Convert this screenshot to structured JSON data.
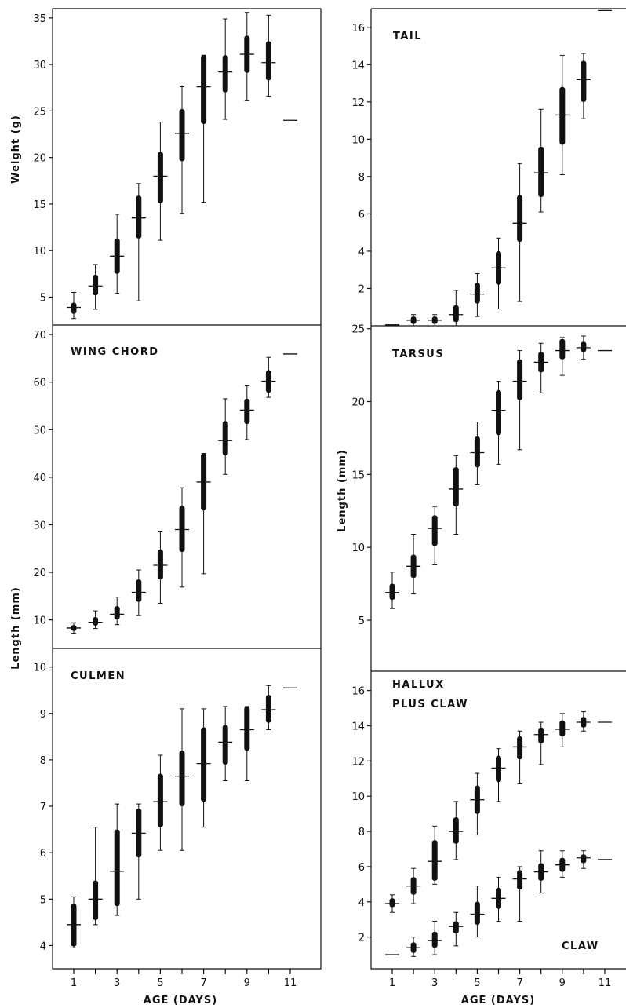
{
  "chart_data": [
    {
      "type": "boxplot",
      "id": "weight",
      "title": "",
      "ylabel": "Weight (g)",
      "yticks": [
        5,
        10,
        15,
        20,
        25,
        30,
        35
      ],
      "ylim": [
        2,
        36
      ],
      "boxes": [
        {
          "x": 1,
          "min": 2.7,
          "q1": 3.2,
          "median": 3.9,
          "q3": 4.4,
          "max": 5.5
        },
        {
          "x": 2,
          "min": 3.7,
          "q1": 5.2,
          "median": 6.2,
          "q3": 7.4,
          "max": 8.5
        },
        {
          "x": 3,
          "min": 5.4,
          "q1": 7.5,
          "median": 9.4,
          "q3": 11.3,
          "max": 13.9
        },
        {
          "x": 4,
          "min": 4.6,
          "q1": 11.3,
          "median": 13.5,
          "q3": 15.9,
          "max": 17.2
        },
        {
          "x": 5,
          "min": 11.1,
          "q1": 15.1,
          "median": 18.0,
          "q3": 20.6,
          "max": 23.8
        },
        {
          "x": 6,
          "min": 14.0,
          "q1": 19.6,
          "median": 22.6,
          "q3": 25.2,
          "max": 27.6
        },
        {
          "x": 7,
          "min": 15.2,
          "q1": 23.6,
          "median": 27.6,
          "q3": 31.0,
          "max": 31.0
        },
        {
          "x": 8,
          "min": 24.1,
          "q1": 27.0,
          "median": 29.2,
          "q3": 31.0,
          "max": 34.9
        },
        {
          "x": 9,
          "min": 26.1,
          "q1": 29.1,
          "median": 31.1,
          "q3": 33.1,
          "max": 35.6
        },
        {
          "x": 10,
          "min": 26.6,
          "q1": 28.3,
          "median": 30.2,
          "q3": 32.5,
          "max": 35.3
        },
        {
          "x": 11,
          "median": 24.0
        }
      ]
    },
    {
      "type": "boxplot",
      "id": "tail",
      "title": "TAIL",
      "yticks": [
        2,
        4,
        6,
        8,
        10,
        12,
        14,
        16
      ],
      "ylim": [
        0,
        17
      ],
      "boxes": [
        {
          "x": 1,
          "median": 0.05
        },
        {
          "x": 2,
          "min": 0.0,
          "q1": 0.1,
          "median": 0.3,
          "q3": 0.5,
          "max": 0.6
        },
        {
          "x": 3,
          "min": 0.0,
          "q1": 0.1,
          "median": 0.3,
          "q3": 0.5,
          "max": 0.6
        },
        {
          "x": 4,
          "min": 0.0,
          "q1": 0.2,
          "median": 0.6,
          "q3": 1.1,
          "max": 1.9
        },
        {
          "x": 5,
          "min": 0.5,
          "q1": 1.2,
          "median": 1.7,
          "q3": 2.3,
          "max": 2.8
        },
        {
          "x": 6,
          "min": 0.9,
          "q1": 2.2,
          "median": 3.1,
          "q3": 4.0,
          "max": 4.7
        },
        {
          "x": 7,
          "min": 1.3,
          "q1": 4.5,
          "median": 5.5,
          "q3": 7.0,
          "max": 8.7
        },
        {
          "x": 8,
          "min": 6.1,
          "q1": 6.9,
          "median": 8.2,
          "q3": 9.6,
          "max": 11.6
        },
        {
          "x": 9,
          "min": 8.1,
          "q1": 9.7,
          "median": 11.3,
          "q3": 12.8,
          "max": 14.5
        },
        {
          "x": 10,
          "min": 11.1,
          "q1": 12.0,
          "median": 13.2,
          "q3": 14.2,
          "max": 14.6
        },
        {
          "x": 11,
          "median": 16.9
        }
      ]
    },
    {
      "type": "boxplot",
      "id": "wing",
      "title": "WING CHORD",
      "yticks": [
        10,
        20,
        30,
        40,
        50,
        60,
        70
      ],
      "ylim": [
        4,
        72
      ],
      "boxes": [
        {
          "x": 1,
          "min": 7.2,
          "q1": 7.7,
          "median": 8.3,
          "q3": 8.9,
          "max": 9.4
        },
        {
          "x": 2,
          "min": 8.2,
          "q1": 8.8,
          "median": 9.5,
          "q3": 10.6,
          "max": 11.9
        },
        {
          "x": 3,
          "min": 9.0,
          "q1": 10.1,
          "median": 11.2,
          "q3": 12.9,
          "max": 14.8
        },
        {
          "x": 4,
          "min": 10.9,
          "q1": 13.8,
          "median": 15.8,
          "q3": 18.5,
          "max": 20.5
        },
        {
          "x": 5,
          "min": 13.5,
          "q1": 18.5,
          "median": 21.5,
          "q3": 24.8,
          "max": 28.5
        },
        {
          "x": 6,
          "min": 16.9,
          "q1": 24.3,
          "median": 29.0,
          "q3": 34.0,
          "max": 37.8
        },
        {
          "x": 7,
          "min": 19.7,
          "q1": 33.0,
          "median": 39.0,
          "q3": 45.0,
          "max": 45.0
        },
        {
          "x": 8,
          "min": 40.6,
          "q1": 44.6,
          "median": 47.7,
          "q3": 51.8,
          "max": 56.5
        },
        {
          "x": 9,
          "min": 47.9,
          "q1": 51.2,
          "median": 54.1,
          "q3": 56.5,
          "max": 59.2
        },
        {
          "x": 10,
          "min": 56.8,
          "q1": 57.8,
          "median": 60.2,
          "q3": 62.5,
          "max": 65.2
        },
        {
          "x": 11,
          "median": 65.9
        }
      ]
    },
    {
      "type": "boxplot",
      "id": "tarsus",
      "title": "TARSUS",
      "ylabel": "Length (mm)",
      "yticks": [
        5,
        10,
        15,
        20,
        25
      ],
      "ylim": [
        1.5,
        25.2
      ],
      "boxes": [
        {
          "x": 1,
          "min": 5.8,
          "q1": 6.4,
          "median": 6.9,
          "q3": 7.5,
          "max": 8.3
        },
        {
          "x": 2,
          "min": 6.8,
          "q1": 7.9,
          "median": 8.7,
          "q3": 9.5,
          "max": 10.9
        },
        {
          "x": 3,
          "min": 8.8,
          "q1": 10.1,
          "median": 11.3,
          "q3": 12.2,
          "max": 12.8
        },
        {
          "x": 4,
          "min": 10.9,
          "q1": 12.8,
          "median": 14.0,
          "q3": 15.5,
          "max": 16.3
        },
        {
          "x": 5,
          "min": 14.3,
          "q1": 15.5,
          "median": 16.5,
          "q3": 17.6,
          "max": 18.6
        },
        {
          "x": 6,
          "min": 15.7,
          "q1": 17.7,
          "median": 19.4,
          "q3": 20.8,
          "max": 21.4
        },
        {
          "x": 7,
          "min": 16.7,
          "q1": 20.1,
          "median": 21.4,
          "q3": 22.9,
          "max": 23.5
        },
        {
          "x": 8,
          "min": 20.6,
          "q1": 22.0,
          "median": 22.7,
          "q3": 23.4,
          "max": 24.0
        },
        {
          "x": 9,
          "min": 21.8,
          "q1": 22.9,
          "median": 23.5,
          "q3": 24.3,
          "max": 24.4
        },
        {
          "x": 10,
          "min": 22.9,
          "q1": 23.4,
          "median": 23.7,
          "q3": 24.1,
          "max": 24.5
        },
        {
          "x": 11,
          "median": 23.5
        }
      ]
    },
    {
      "type": "boxplot",
      "id": "culmen",
      "title": "CULMEN",
      "yticks": [
        4,
        5,
        6,
        7,
        8,
        9,
        10
      ],
      "ylim": [
        3.5,
        10.4
      ],
      "boxes": [
        {
          "x": 1,
          "min": 3.95,
          "q1": 3.98,
          "median": 4.45,
          "q3": 4.9,
          "max": 5.05
        },
        {
          "x": 2,
          "min": 4.45,
          "q1": 4.55,
          "median": 5.0,
          "q3": 5.4,
          "max": 6.55
        },
        {
          "x": 3,
          "min": 4.65,
          "q1": 4.85,
          "median": 5.6,
          "q3": 6.5,
          "max": 7.05
        },
        {
          "x": 4,
          "min": 5.0,
          "q1": 5.9,
          "median": 6.42,
          "q3": 6.95,
          "max": 7.05
        },
        {
          "x": 5,
          "min": 6.05,
          "q1": 6.55,
          "median": 7.1,
          "q3": 7.7,
          "max": 8.1
        },
        {
          "x": 6,
          "min": 6.05,
          "q1": 7.0,
          "median": 7.65,
          "q3": 8.2,
          "max": 9.1
        },
        {
          "x": 7,
          "min": 6.55,
          "q1": 7.1,
          "median": 7.92,
          "q3": 8.7,
          "max": 9.1
        },
        {
          "x": 8,
          "min": 7.55,
          "q1": 7.9,
          "median": 8.38,
          "q3": 8.75,
          "max": 9.15
        },
        {
          "x": 9,
          "min": 7.55,
          "q1": 8.2,
          "median": 8.65,
          "q3": 9.15,
          "max": 9.15
        },
        {
          "x": 10,
          "min": 8.65,
          "q1": 8.8,
          "median": 9.08,
          "q3": 9.4,
          "max": 9.6
        },
        {
          "x": 11,
          "median": 9.55
        }
      ]
    },
    {
      "type": "boxplot",
      "id": "hallux",
      "title": "HALLUX",
      "title_line2": "PLUS CLAW",
      "series_label": "CLAW",
      "yticks": [
        2,
        4,
        6,
        8,
        10,
        12,
        14,
        16
      ],
      "ylim": [
        0.2,
        17.1
      ],
      "boxes": [
        {
          "x": 1,
          "min": 3.4,
          "q1": 3.7,
          "median": 3.9,
          "q3": 4.2,
          "max": 4.4
        },
        {
          "x": 2,
          "min": 3.9,
          "q1": 4.4,
          "median": 4.9,
          "q3": 5.4,
          "max": 5.9
        },
        {
          "x": 3,
          "min": 5.0,
          "q1": 5.2,
          "median": 6.3,
          "q3": 7.5,
          "max": 8.3
        },
        {
          "x": 4,
          "min": 6.4,
          "q1": 7.3,
          "median": 8.0,
          "q3": 8.8,
          "max": 9.7
        },
        {
          "x": 5,
          "min": 7.8,
          "q1": 9.0,
          "median": 9.8,
          "q3": 10.6,
          "max": 11.3
        },
        {
          "x": 6,
          "min": 9.7,
          "q1": 10.8,
          "median": 11.6,
          "q3": 12.3,
          "max": 12.7
        },
        {
          "x": 7,
          "min": 10.7,
          "q1": 12.1,
          "median": 12.8,
          "q3": 13.4,
          "max": 13.7
        },
        {
          "x": 8,
          "min": 11.8,
          "q1": 13.0,
          "median": 13.5,
          "q3": 13.9,
          "max": 14.2
        },
        {
          "x": 9,
          "min": 12.8,
          "q1": 13.4,
          "median": 13.8,
          "q3": 14.3,
          "max": 14.7
        },
        {
          "x": 10,
          "min": 13.7,
          "q1": 13.9,
          "median": 14.2,
          "q3": 14.5,
          "max": 14.8
        },
        {
          "x": 11,
          "median": 14.2
        }
      ],
      "boxes2": [
        {
          "x": 1,
          "median": 1.0
        },
        {
          "x": 2,
          "min": 0.9,
          "q1": 1.1,
          "median": 1.4,
          "q3": 1.7,
          "max": 2.0
        },
        {
          "x": 3,
          "min": 1.0,
          "q1": 1.4,
          "median": 1.8,
          "q3": 2.3,
          "max": 2.9
        },
        {
          "x": 4,
          "min": 1.5,
          "q1": 2.2,
          "median": 2.6,
          "q3": 2.9,
          "max": 3.4
        },
        {
          "x": 5,
          "min": 2.0,
          "q1": 2.7,
          "median": 3.3,
          "q3": 4.0,
          "max": 4.9
        },
        {
          "x": 6,
          "min": 2.9,
          "q1": 3.6,
          "median": 4.2,
          "q3": 4.8,
          "max": 5.4
        },
        {
          "x": 7,
          "min": 2.9,
          "q1": 4.7,
          "median": 5.3,
          "q3": 5.8,
          "max": 6.0
        },
        {
          "x": 8,
          "min": 4.5,
          "q1": 5.2,
          "median": 5.7,
          "q3": 6.2,
          "max": 6.9
        },
        {
          "x": 9,
          "min": 5.4,
          "q1": 5.7,
          "median": 6.1,
          "q3": 6.5,
          "max": 6.9
        },
        {
          "x": 10,
          "min": 5.9,
          "q1": 6.2,
          "median": 6.5,
          "q3": 6.7,
          "max": 6.9
        },
        {
          "x": 11,
          "median": 6.4
        }
      ]
    }
  ],
  "shared": {
    "left_ylabel": "Length (mm)",
    "xlabel_left": "AGE (DAYS)",
    "xlabel_right": "AGE (DAYS)",
    "xticks": [
      1,
      3,
      5,
      7,
      9,
      11
    ]
  }
}
